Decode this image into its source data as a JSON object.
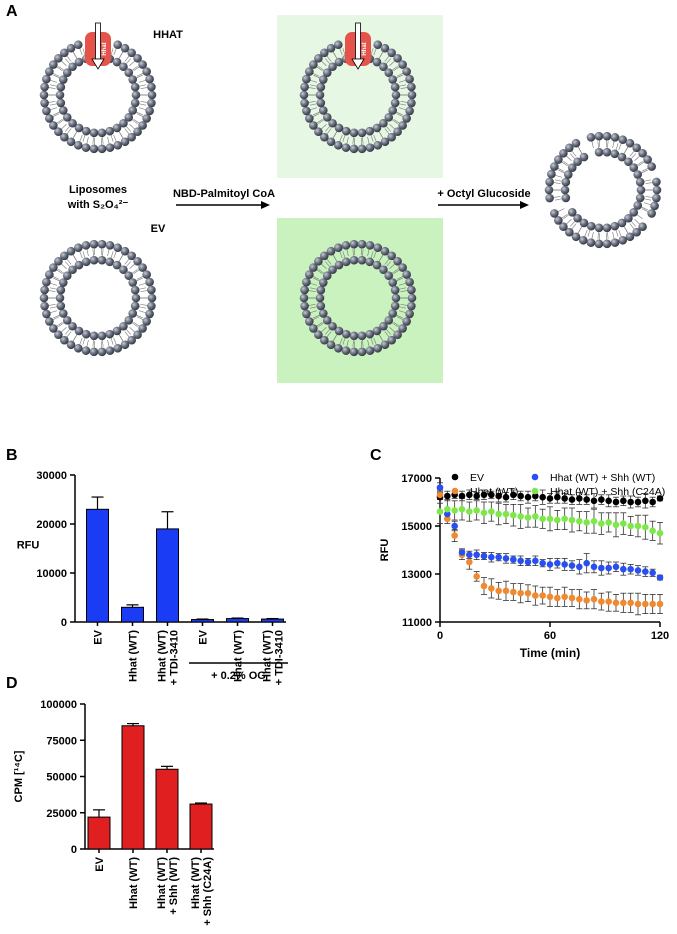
{
  "diagram": {
    "panel": "A",
    "hhat": "HHAT",
    "ev": "EV",
    "protein": "Hhat",
    "liposomes": "Liposomes",
    "with": "with S₂O₄²⁻",
    "step1": "NBD-Palmitoyl CoA",
    "step2": "+ Octyl Glucoside"
  },
  "chart_data": [
    {
      "panel": "B",
      "type": "bar",
      "ylabel": "RFU",
      "categories": [
        "EV",
        "Hhat (WT)",
        "Hhat (WT) + TDI-3410",
        "EV",
        "Hhat (WT)",
        "Hhat (WT) + TDI-3410"
      ],
      "values": [
        23000,
        3000,
        19000,
        500,
        700,
        600
      ],
      "errors": [
        2500,
        500,
        3500,
        100,
        100,
        100
      ],
      "color": "#1a3cf5",
      "ylim": [
        0,
        30000
      ],
      "yticks": [
        0,
        10000,
        20000,
        30000
      ],
      "groups": [
        {
          "label": "+ 0.2% OG",
          "start": 3,
          "end": 5
        }
      ]
    },
    {
      "panel": "C",
      "type": "scatter",
      "xlabel": "Time (min)",
      "ylabel": "RFU",
      "x": [
        0,
        4,
        8,
        12,
        16,
        20,
        24,
        28,
        32,
        36,
        40,
        44,
        48,
        52,
        56,
        60,
        64,
        68,
        72,
        76,
        80,
        84,
        88,
        92,
        96,
        100,
        104,
        108,
        112,
        116,
        120
      ],
      "series": [
        {
          "name": "EV",
          "color": "#000000",
          "values": [
            16200,
            16250,
            16300,
            16250,
            16300,
            16250,
            16300,
            16300,
            16250,
            16200,
            16300,
            16250,
            16200,
            16250,
            16200,
            16150,
            16200,
            16150,
            16100,
            16150,
            16100,
            16050,
            16100,
            16050,
            16000,
            16050,
            16000,
            16000,
            16050,
            16000,
            16150
          ],
          "errors": [
            250,
            200,
            150,
            200,
            200,
            150,
            200,
            150,
            250,
            200,
            200,
            200,
            250,
            200,
            300,
            200,
            250,
            200,
            200,
            250,
            200,
            300,
            200,
            250,
            200,
            200,
            250,
            200,
            300,
            200,
            100
          ]
        },
        {
          "name": "Hhat (WT)",
          "color": "#f08a30",
          "values": [
            16300,
            15300,
            14600,
            13800,
            13500,
            12900,
            12500,
            12400,
            12300,
            12300,
            12250,
            12200,
            12200,
            12100,
            12100,
            12050,
            12000,
            12050,
            12000,
            11950,
            11900,
            11950,
            11850,
            11850,
            11800,
            11800,
            11800,
            11750,
            11750,
            11750,
            11750
          ],
          "errors": [
            200,
            200,
            250,
            200,
            300,
            200,
            350,
            400,
            350,
            400,
            350,
            400,
            350,
            400,
            350,
            400,
            350,
            400,
            350,
            400,
            350,
            400,
            350,
            400,
            350,
            400,
            400,
            450,
            400,
            400,
            400
          ]
        },
        {
          "name": "Hhat (WT) + Shh (WT)",
          "color": "#2a4ff0",
          "values": [
            16600,
            15500,
            15000,
            13900,
            13800,
            13800,
            13750,
            13700,
            13700,
            13650,
            13600,
            13550,
            13500,
            13550,
            13450,
            13400,
            13450,
            13400,
            13350,
            13300,
            13450,
            13300,
            13250,
            13250,
            13300,
            13200,
            13200,
            13150,
            13100,
            13050,
            12850
          ],
          "errors": [
            200,
            200,
            200,
            150,
            150,
            200,
            150,
            200,
            150,
            200,
            150,
            200,
            150,
            200,
            150,
            250,
            200,
            250,
            200,
            300,
            400,
            250,
            300,
            250,
            200,
            250,
            200,
            200,
            200,
            150,
            100
          ]
        },
        {
          "name": "Hhat (WT) + Shh (C24A)",
          "color": "#7ee84a",
          "values": [
            15600,
            15700,
            15650,
            15700,
            15600,
            15650,
            15550,
            15600,
            15500,
            15500,
            15450,
            15400,
            15350,
            15400,
            15300,
            15300,
            15250,
            15300,
            15250,
            15200,
            15150,
            15200,
            15100,
            15150,
            15050,
            15100,
            15000,
            15000,
            14950,
            14800,
            14700
          ],
          "errors": [
            500,
            400,
            400,
            450,
            400,
            400,
            450,
            400,
            450,
            400,
            450,
            500,
            400,
            450,
            400,
            500,
            400,
            450,
            500,
            400,
            450,
            500,
            450,
            400,
            500,
            450,
            400,
            450,
            500,
            400,
            450
          ]
        }
      ],
      "xlim": [
        0,
        120
      ],
      "xticks": [
        0,
        60,
        120
      ],
      "ylim": [
        11000,
        17000
      ],
      "yticks": [
        11000,
        13000,
        15000,
        17000
      ]
    },
    {
      "panel": "D",
      "type": "bar",
      "ylabel": "CPM [¹⁴C]",
      "categories": [
        "EV",
        "Hhat (WT)",
        "Hhat (WT) + Shh (WT)",
        "Hhat (WT) + Shh (C24A)"
      ],
      "values": [
        22000,
        85000,
        55000,
        31000
      ],
      "errors": [
        5000,
        1500,
        2000,
        700
      ],
      "color": "#e02020",
      "ylim": [
        0,
        100000
      ],
      "yticks": [
        0,
        25000,
        50000,
        75000,
        100000
      ]
    }
  ]
}
